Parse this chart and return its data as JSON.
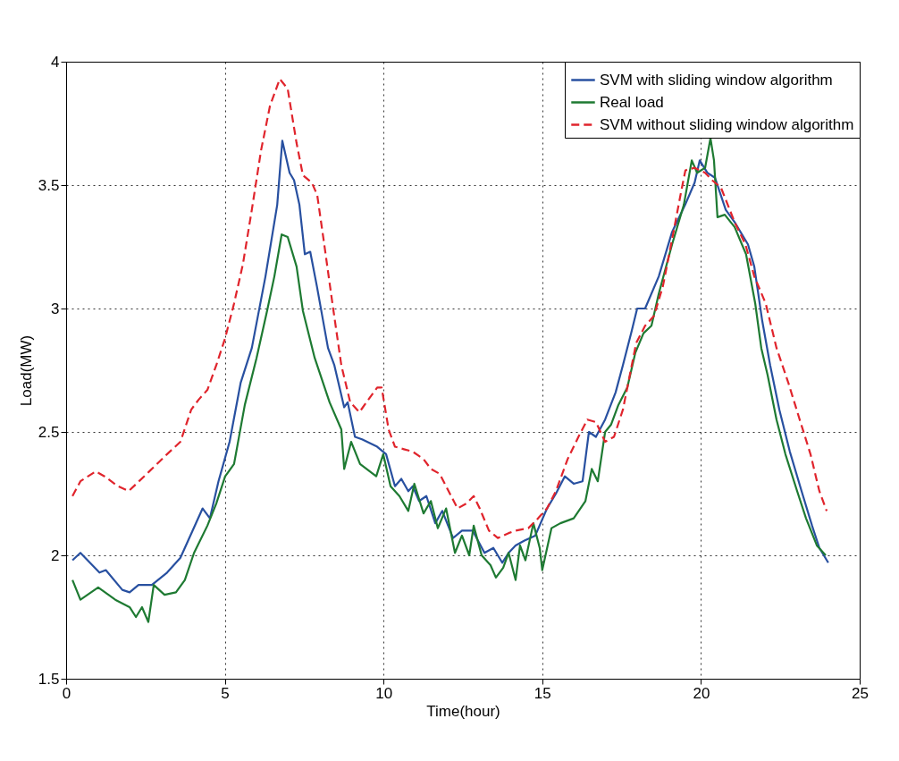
{
  "chart_data": {
    "type": "line",
    "xlabel": "Time(hour)",
    "ylabel": "Load(MW)",
    "xlim": [
      0,
      25
    ],
    "xticks": [
      0,
      5,
      10,
      15,
      20,
      25
    ],
    "ylim": [
      1.5,
      4
    ],
    "yticks": [
      1.5,
      2,
      2.5,
      3,
      3.5,
      4
    ],
    "grid": true,
    "legend": "top right",
    "marker": "none",
    "series": [
      {
        "name": "SVM with sliding window algorithm",
        "color": "#2850a0",
        "line_style": "solid",
        "x": [
          0.2,
          0.45,
          1.05,
          1.25,
          1.77,
          2.0,
          2.28,
          2.7,
          3.18,
          3.6,
          4.3,
          4.53,
          4.8,
          5.15,
          5.5,
          5.85,
          6.28,
          6.65,
          6.81,
          7.04,
          7.18,
          7.35,
          7.52,
          7.69,
          7.9,
          8.25,
          8.45,
          8.76,
          8.87,
          9.1,
          9.32,
          9.8,
          10.08,
          10.36,
          10.56,
          10.78,
          10.92,
          11.12,
          11.35,
          11.63,
          11.85,
          12.19,
          12.47,
          12.81,
          13.18,
          13.46,
          13.74,
          13.94,
          14.16,
          14.44,
          14.78,
          15.15,
          15.43,
          15.71,
          15.99,
          16.27,
          16.47,
          16.69,
          16.98,
          17.31,
          17.54,
          17.82,
          17.99,
          18.24,
          18.67,
          19.09,
          19.5,
          19.8,
          19.96,
          20.2,
          20.44,
          20.78,
          21.06,
          21.48,
          21.68,
          21.93,
          22.18,
          22.47,
          22.8,
          23.17,
          23.5,
          23.73,
          24.01
        ],
        "values": [
          1.98,
          2.01,
          1.93,
          1.94,
          1.86,
          1.85,
          1.88,
          1.88,
          1.93,
          1.99,
          2.19,
          2.15,
          2.3,
          2.46,
          2.7,
          2.84,
          3.13,
          3.42,
          3.68,
          3.55,
          3.52,
          3.42,
          3.22,
          3.23,
          3.09,
          2.84,
          2.77,
          2.6,
          2.62,
          2.48,
          2.47,
          2.44,
          2.41,
          2.28,
          2.31,
          2.26,
          2.28,
          2.22,
          2.24,
          2.13,
          2.18,
          2.07,
          2.1,
          2.1,
          2.01,
          2.03,
          1.97,
          2.01,
          2.04,
          2.06,
          2.08,
          2.19,
          2.25,
          2.32,
          2.29,
          2.3,
          2.5,
          2.48,
          2.55,
          2.66,
          2.77,
          2.91,
          3.0,
          3.0,
          3.13,
          3.31,
          3.42,
          3.51,
          3.6,
          3.55,
          3.53,
          3.4,
          3.35,
          3.26,
          3.17,
          2.95,
          2.77,
          2.59,
          2.42,
          2.26,
          2.12,
          2.03,
          1.97
        ]
      },
      {
        "name": "Real load",
        "color": "#1e7a32",
        "line_style": "solid",
        "x": [
          0.2,
          0.45,
          1.01,
          1.55,
          2.0,
          2.2,
          2.39,
          2.59,
          2.76,
          3.1,
          3.46,
          3.74,
          4.03,
          4.45,
          4.73,
          5.01,
          5.29,
          5.63,
          6.0,
          6.33,
          6.56,
          6.79,
          6.98,
          7.26,
          7.46,
          7.83,
          8.3,
          8.67,
          8.76,
          8.98,
          9.26,
          9.77,
          9.99,
          10.22,
          10.5,
          10.78,
          10.97,
          11.26,
          11.49,
          11.71,
          11.97,
          12.25,
          12.47,
          12.7,
          12.84,
          13.09,
          13.37,
          13.54,
          13.77,
          13.94,
          14.16,
          14.3,
          14.47,
          14.72,
          14.92,
          15.0,
          15.29,
          15.57,
          15.99,
          16.36,
          16.56,
          16.75,
          16.98,
          17.17,
          17.4,
          17.68,
          17.93,
          18.19,
          18.44,
          18.67,
          19.09,
          19.46,
          19.71,
          19.88,
          20.13,
          20.3,
          20.41,
          20.52,
          20.75,
          21.06,
          21.42,
          21.71,
          21.9,
          22.1,
          22.38,
          22.66,
          23.03,
          23.31,
          23.65,
          23.93
        ],
        "values": [
          1.9,
          1.82,
          1.87,
          1.82,
          1.79,
          1.75,
          1.79,
          1.73,
          1.88,
          1.84,
          1.85,
          1.9,
          2.01,
          2.12,
          2.21,
          2.32,
          2.37,
          2.61,
          2.8,
          2.99,
          3.13,
          3.3,
          3.29,
          3.17,
          2.99,
          2.8,
          2.62,
          2.51,
          2.35,
          2.46,
          2.37,
          2.32,
          2.41,
          2.28,
          2.24,
          2.18,
          2.29,
          2.17,
          2.22,
          2.11,
          2.19,
          2.01,
          2.08,
          2.0,
          2.12,
          2.0,
          1.96,
          1.91,
          1.95,
          2.01,
          1.9,
          2.04,
          1.98,
          2.13,
          2.03,
          1.94,
          2.11,
          2.13,
          2.15,
          2.22,
          2.35,
          2.3,
          2.5,
          2.53,
          2.61,
          2.68,
          2.82,
          2.9,
          2.93,
          3.06,
          3.26,
          3.42,
          3.6,
          3.55,
          3.57,
          3.69,
          3.6,
          3.37,
          3.38,
          3.33,
          3.22,
          3.02,
          2.84,
          2.73,
          2.55,
          2.41,
          2.26,
          2.15,
          2.04,
          2.0
        ]
      },
      {
        "name": "SVM without sliding window algorithm",
        "color": "#e0242c",
        "line_style": "dashed",
        "x": [
          0.2,
          0.45,
          0.93,
          1.21,
          1.63,
          1.97,
          2.62,
          3.18,
          3.6,
          3.94,
          4.17,
          4.45,
          4.73,
          5.01,
          5.29,
          5.57,
          5.85,
          6.14,
          6.42,
          6.73,
          6.98,
          7.26,
          7.46,
          7.74,
          7.91,
          8.11,
          8.39,
          8.67,
          8.95,
          9.24,
          9.46,
          9.8,
          9.94,
          10.16,
          10.36,
          10.64,
          10.92,
          11.26,
          11.49,
          11.77,
          12.05,
          12.33,
          12.61,
          12.84,
          13.03,
          13.32,
          13.6,
          13.94,
          14.16,
          14.56,
          14.87,
          15.15,
          15.43,
          15.8,
          16.14,
          16.42,
          16.69,
          16.98,
          17.26,
          17.54,
          17.82,
          17.96,
          18.24,
          18.52,
          18.8,
          19.09,
          19.37,
          19.51,
          19.8,
          20.13,
          20.35,
          20.63,
          21.06,
          21.4,
          21.68,
          22.04,
          22.38,
          22.75,
          23.11,
          23.45,
          23.73,
          23.96
        ],
        "values": [
          2.24,
          2.3,
          2.34,
          2.32,
          2.28,
          2.26,
          2.34,
          2.41,
          2.46,
          2.59,
          2.63,
          2.67,
          2.77,
          2.88,
          3.02,
          3.18,
          3.4,
          3.64,
          3.82,
          3.93,
          3.89,
          3.67,
          3.54,
          3.51,
          3.46,
          3.28,
          3.02,
          2.77,
          2.62,
          2.58,
          2.62,
          2.68,
          2.68,
          2.51,
          2.44,
          2.43,
          2.42,
          2.39,
          2.35,
          2.33,
          2.26,
          2.19,
          2.21,
          2.24,
          2.19,
          2.1,
          2.07,
          2.09,
          2.1,
          2.11,
          2.15,
          2.19,
          2.26,
          2.39,
          2.48,
          2.55,
          2.54,
          2.46,
          2.48,
          2.59,
          2.77,
          2.86,
          2.93,
          2.97,
          3.09,
          3.28,
          3.47,
          3.56,
          3.57,
          3.55,
          3.52,
          3.49,
          3.35,
          3.26,
          3.13,
          3.02,
          2.84,
          2.7,
          2.55,
          2.41,
          2.26,
          2.18
        ]
      }
    ]
  }
}
